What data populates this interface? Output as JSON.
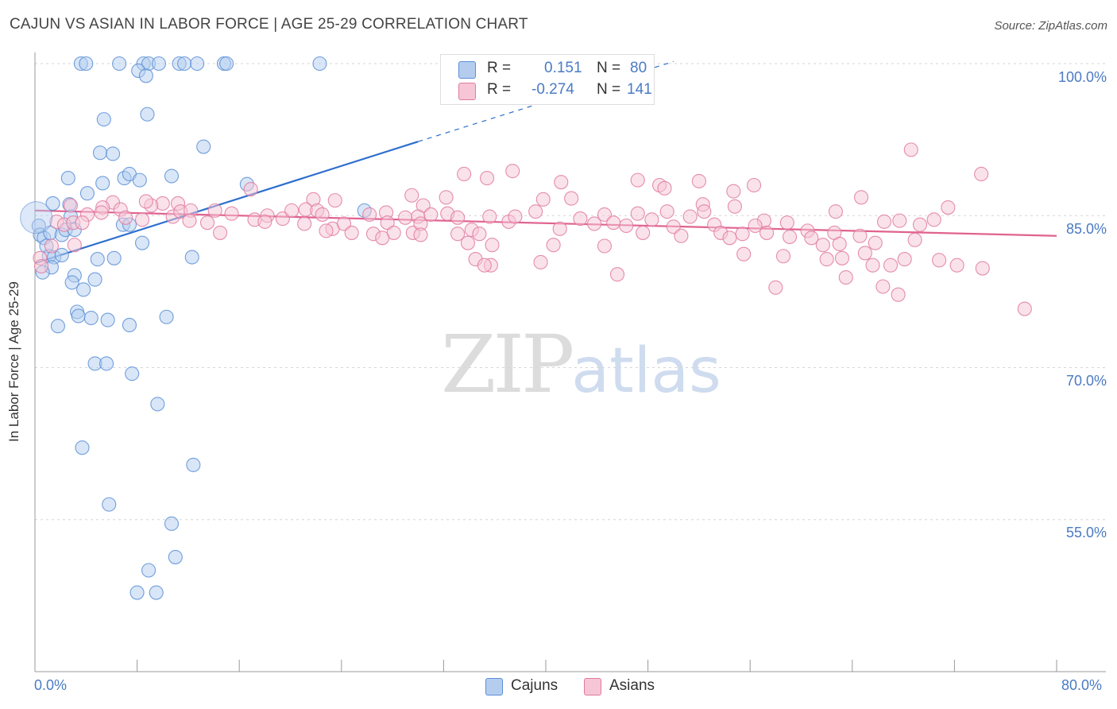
{
  "chart_data": {
    "type": "scatter",
    "title": "CAJUN VS ASIAN IN LABOR FORCE | AGE 25-29 CORRELATION CHART",
    "source": "Source: ZipAtlas.com",
    "ylabel": "In Labor Force | Age 25-29",
    "xlabel": "",
    "xlim": [
      0,
      80
    ],
    "ylim": [
      40,
      100
    ],
    "x_ticks": [
      "0.0%",
      "80.0%"
    ],
    "y_ticks": [
      {
        "value": 100,
        "label": "100.0%"
      },
      {
        "value": 85,
        "label": "85.0%"
      },
      {
        "value": 70,
        "label": "70.0%"
      },
      {
        "value": 55,
        "label": "55.0%"
      }
    ],
    "watermark": {
      "zip": "ZIP",
      "atlas": "atlas"
    },
    "stats": [
      {
        "r_label": "R =",
        "r_value": "0.151",
        "n_label": "N =",
        "n_value": "80"
      },
      {
        "r_label": "R =",
        "r_value": "-0.274",
        "n_label": "N =",
        "n_value": "141"
      }
    ],
    "series": [
      {
        "name": "Cajuns",
        "color": "#5b8fd6",
        "fill": "#b4cdef",
        "trend": {
          "x0": 0,
          "y0": 80.3,
          "x1": 30,
          "y1": 92.3,
          "dash_x1": 50,
          "dash_y1": 100.2
        },
        "points": [
          [
            3.6,
            100
          ],
          [
            4.0,
            100
          ],
          [
            6.6,
            100
          ],
          [
            8.5,
            100
          ],
          [
            8.9,
            100
          ],
          [
            9.7,
            100
          ],
          [
            11.3,
            100
          ],
          [
            11.7,
            100
          ],
          [
            12.7,
            100
          ],
          [
            14.8,
            100
          ],
          [
            15.0,
            100
          ],
          [
            22.3,
            100
          ],
          [
            8.1,
            99.3
          ],
          [
            8.7,
            98.8
          ],
          [
            5.4,
            94.5
          ],
          [
            8.8,
            95
          ],
          [
            5.1,
            91.2
          ],
          [
            6.1,
            91.1
          ],
          [
            13.2,
            91.8
          ],
          [
            2.6,
            88.7
          ],
          [
            7.0,
            88.7
          ],
          [
            7.4,
            89.1
          ],
          [
            10.7,
            88.9
          ],
          [
            5.3,
            88.2
          ],
          [
            8.2,
            88.5
          ],
          [
            16.6,
            88.1
          ],
          [
            4.1,
            87.2
          ],
          [
            1.4,
            86.2
          ],
          [
            2.7,
            86.1
          ],
          [
            25.8,
            85.5
          ],
          [
            2.8,
            84.9
          ],
          [
            6.9,
            84.1
          ],
          [
            7.4,
            84.1
          ],
          [
            0.3,
            84.0
          ],
          [
            0.4,
            83.1
          ],
          [
            0.7,
            82.8
          ],
          [
            1.2,
            83.3
          ],
          [
            2.1,
            83.1
          ],
          [
            2.4,
            83.6
          ],
          [
            3.1,
            83.6
          ],
          [
            0.9,
            82.0
          ],
          [
            1.1,
            81.0
          ],
          [
            1.5,
            80.9
          ],
          [
            2.1,
            81.1
          ],
          [
            8.4,
            82.3
          ],
          [
            4.9,
            80.7
          ],
          [
            6.2,
            80.8
          ],
          [
            12.3,
            80.9
          ],
          [
            1.3,
            79.9
          ],
          [
            0.6,
            79.4
          ],
          [
            3.1,
            79.1
          ],
          [
            4.7,
            78.7
          ],
          [
            2.9,
            78.4
          ],
          [
            3.8,
            77.7
          ],
          [
            3.3,
            75.5
          ],
          [
            3.4,
            75.1
          ],
          [
            4.4,
            74.9
          ],
          [
            5.7,
            74.7
          ],
          [
            10.3,
            75.0
          ],
          [
            1.8,
            74.1
          ],
          [
            7.4,
            74.2
          ],
          [
            4.7,
            70.4
          ],
          [
            5.6,
            70.4
          ],
          [
            7.6,
            69.4
          ],
          [
            9.6,
            66.4
          ],
          [
            3.7,
            62.1
          ],
          [
            12.4,
            60.4
          ],
          [
            5.8,
            56.5
          ],
          [
            10.7,
            54.6
          ],
          [
            11.0,
            51.3
          ],
          [
            8.9,
            50.0
          ],
          [
            8.0,
            47.8
          ],
          [
            9.5,
            47.8
          ]
        ]
      },
      {
        "name": "Asians",
        "color": "#e07aa0",
        "fill": "#f6c6d6",
        "trend": {
          "x0": 0,
          "y0": 85.5,
          "x1": 80,
          "y1": 83.0
        },
        "points": [
          [
            68.6,
            91.5
          ],
          [
            74.1,
            89.1
          ],
          [
            33.6,
            89.1
          ],
          [
            35.4,
            88.7
          ],
          [
            37.4,
            89.4
          ],
          [
            41.2,
            88.3
          ],
          [
            47.2,
            88.5
          ],
          [
            48.9,
            88.0
          ],
          [
            49.3,
            87.7
          ],
          [
            52.0,
            88.4
          ],
          [
            54.7,
            87.4
          ],
          [
            56.3,
            88.0
          ],
          [
            16.9,
            87.6
          ],
          [
            21.8,
            86.6
          ],
          [
            29.5,
            87.0
          ],
          [
            32.2,
            86.8
          ],
          [
            30.4,
            86.0
          ],
          [
            23.5,
            86.5
          ],
          [
            10.0,
            86.2
          ],
          [
            11.2,
            86.2
          ],
          [
            9.1,
            86.0
          ],
          [
            8.7,
            86.4
          ],
          [
            6.1,
            86.3
          ],
          [
            5.3,
            85.8
          ],
          [
            2.8,
            86.0
          ],
          [
            39.8,
            86.6
          ],
          [
            42.0,
            86.7
          ],
          [
            52.3,
            86.1
          ],
          [
            54.8,
            85.9
          ],
          [
            64.7,
            86.8
          ],
          [
            52.4,
            85.4
          ],
          [
            51.3,
            84.9
          ],
          [
            57.1,
            84.5
          ],
          [
            62.7,
            85.4
          ],
          [
            71.5,
            85.8
          ],
          [
            70.4,
            84.6
          ],
          [
            66.5,
            84.4
          ],
          [
            4.1,
            85.1
          ],
          [
            5.2,
            85.3
          ],
          [
            6.7,
            85.6
          ],
          [
            7.1,
            84.8
          ],
          [
            8.4,
            84.6
          ],
          [
            10.8,
            84.9
          ],
          [
            11.4,
            85.4
          ],
          [
            12.2,
            85.5
          ],
          [
            14.1,
            85.5
          ],
          [
            15.4,
            85.2
          ],
          [
            18.2,
            85.0
          ],
          [
            19.4,
            84.7
          ],
          [
            20.1,
            85.5
          ],
          [
            21.2,
            85.6
          ],
          [
            22.1,
            85.5
          ],
          [
            22.5,
            85.1
          ],
          [
            26.2,
            85.1
          ],
          [
            27.5,
            85.3
          ],
          [
            29.0,
            84.8
          ],
          [
            30.0,
            84.9
          ],
          [
            31.0,
            85.1
          ],
          [
            32.3,
            85.2
          ],
          [
            33.1,
            84.8
          ],
          [
            35.6,
            84.9
          ],
          [
            37.1,
            84.4
          ],
          [
            37.6,
            84.9
          ],
          [
            39.2,
            85.4
          ],
          [
            42.7,
            84.7
          ],
          [
            44.6,
            85.1
          ],
          [
            45.3,
            84.3
          ],
          [
            47.2,
            85.2
          ],
          [
            48.3,
            84.6
          ],
          [
            49.5,
            85.4
          ],
          [
            1.7,
            84.4
          ],
          [
            2.3,
            84.1
          ],
          [
            3.0,
            84.3
          ],
          [
            3.7,
            84.3
          ],
          [
            12.1,
            84.5
          ],
          [
            13.5,
            84.3
          ],
          [
            17.2,
            84.6
          ],
          [
            18.0,
            84.4
          ],
          [
            21.1,
            84.2
          ],
          [
            23.3,
            83.7
          ],
          [
            24.2,
            84.2
          ],
          [
            27.6,
            84.3
          ],
          [
            28.1,
            83.3
          ],
          [
            29.6,
            83.3
          ],
          [
            30.2,
            84.2
          ],
          [
            41.1,
            83.7
          ],
          [
            43.8,
            84.2
          ],
          [
            46.3,
            84.0
          ],
          [
            50.0,
            83.9
          ],
          [
            53.2,
            84.1
          ],
          [
            56.4,
            84.0
          ],
          [
            58.9,
            84.3
          ],
          [
            60.5,
            83.5
          ],
          [
            62.6,
            83.3
          ],
          [
            64.6,
            83.0
          ],
          [
            67.7,
            84.5
          ],
          [
            69.3,
            84.1
          ],
          [
            14.5,
            83.3
          ],
          [
            22.8,
            83.5
          ],
          [
            24.8,
            83.3
          ],
          [
            26.5,
            83.2
          ],
          [
            27.2,
            82.8
          ],
          [
            30.2,
            83.1
          ],
          [
            33.1,
            83.2
          ],
          [
            34.2,
            83.6
          ],
          [
            34.8,
            83.2
          ],
          [
            47.6,
            83.3
          ],
          [
            50.6,
            83.0
          ],
          [
            53.7,
            83.3
          ],
          [
            54.4,
            82.8
          ],
          [
            55.4,
            83.2
          ],
          [
            57.3,
            83.3
          ],
          [
            59.1,
            82.9
          ],
          [
            60.8,
            82.8
          ],
          [
            1.3,
            82.0
          ],
          [
            3.1,
            82.1
          ],
          [
            33.9,
            82.3
          ],
          [
            35.8,
            82.1
          ],
          [
            40.6,
            82.1
          ],
          [
            44.6,
            82.0
          ],
          [
            61.7,
            82.1
          ],
          [
            63.0,
            82.2
          ],
          [
            65.8,
            82.3
          ],
          [
            68.9,
            82.6
          ],
          [
            55.5,
            81.2
          ],
          [
            58.6,
            81.0
          ],
          [
            62.0,
            80.7
          ],
          [
            63.2,
            80.8
          ],
          [
            65.0,
            81.3
          ],
          [
            0.4,
            80.8
          ],
          [
            34.5,
            80.7
          ],
          [
            35.7,
            80.1
          ],
          [
            35.2,
            80.1
          ],
          [
            39.6,
            80.4
          ],
          [
            67.0,
            80.1
          ],
          [
            70.8,
            80.6
          ],
          [
            72.2,
            80.1
          ],
          [
            74.2,
            79.8
          ],
          [
            68.1,
            80.7
          ],
          [
            65.6,
            80.1
          ],
          [
            0.5,
            80.0
          ],
          [
            45.6,
            79.2
          ],
          [
            63.5,
            78.9
          ],
          [
            66.4,
            78.0
          ],
          [
            58.0,
            77.9
          ],
          [
            67.6,
            77.2
          ],
          [
            77.5,
            75.8
          ]
        ]
      }
    ]
  },
  "legend": [
    {
      "label": "Cajuns",
      "color": "#b4cdef",
      "border": "#5b8fd6"
    },
    {
      "label": "Asians",
      "color": "#f6c6d6",
      "border": "#e07aa0"
    }
  ]
}
